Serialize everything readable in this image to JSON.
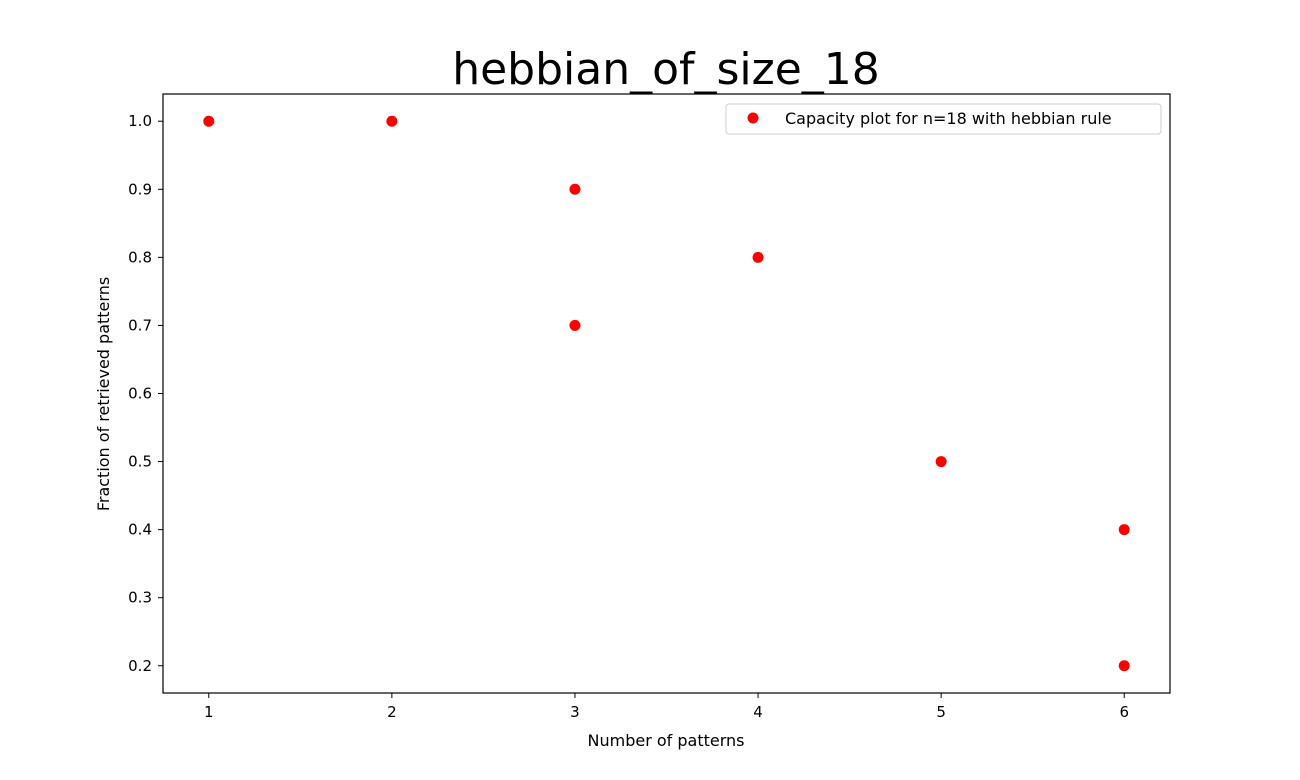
{
  "chart_data": {
    "type": "scatter",
    "title": "hebbian_of_size_18",
    "xlabel": "Number of patterns",
    "ylabel": "Fraction of retrieved patterns",
    "xlim": [
      0.75,
      6.25
    ],
    "ylim": [
      0.16,
      1.04
    ],
    "xticks": [
      1,
      2,
      3,
      4,
      5,
      6
    ],
    "xtick_labels": [
      "1",
      "2",
      "3",
      "4",
      "5",
      "6"
    ],
    "yticks": [
      0.2,
      0.3,
      0.4,
      0.5,
      0.6,
      0.7,
      0.8,
      0.9,
      1.0
    ],
    "ytick_labels": [
      "0.2",
      "0.3",
      "0.4",
      "0.5",
      "0.6",
      "0.7",
      "0.8",
      "0.9",
      "1.0"
    ],
    "grid": false,
    "legend_position": "top-right",
    "series": [
      {
        "name": "Capacity plot for n=18 with hebbian rule",
        "color": "#ff0000",
        "marker": "circle",
        "points": [
          {
            "x": 1,
            "y": 1.0
          },
          {
            "x": 2,
            "y": 1.0
          },
          {
            "x": 3,
            "y": 0.9
          },
          {
            "x": 3,
            "y": 0.7
          },
          {
            "x": 4,
            "y": 0.8
          },
          {
            "x": 5,
            "y": 0.5
          },
          {
            "x": 6,
            "y": 0.4
          },
          {
            "x": 6,
            "y": 0.2
          }
        ]
      }
    ]
  }
}
